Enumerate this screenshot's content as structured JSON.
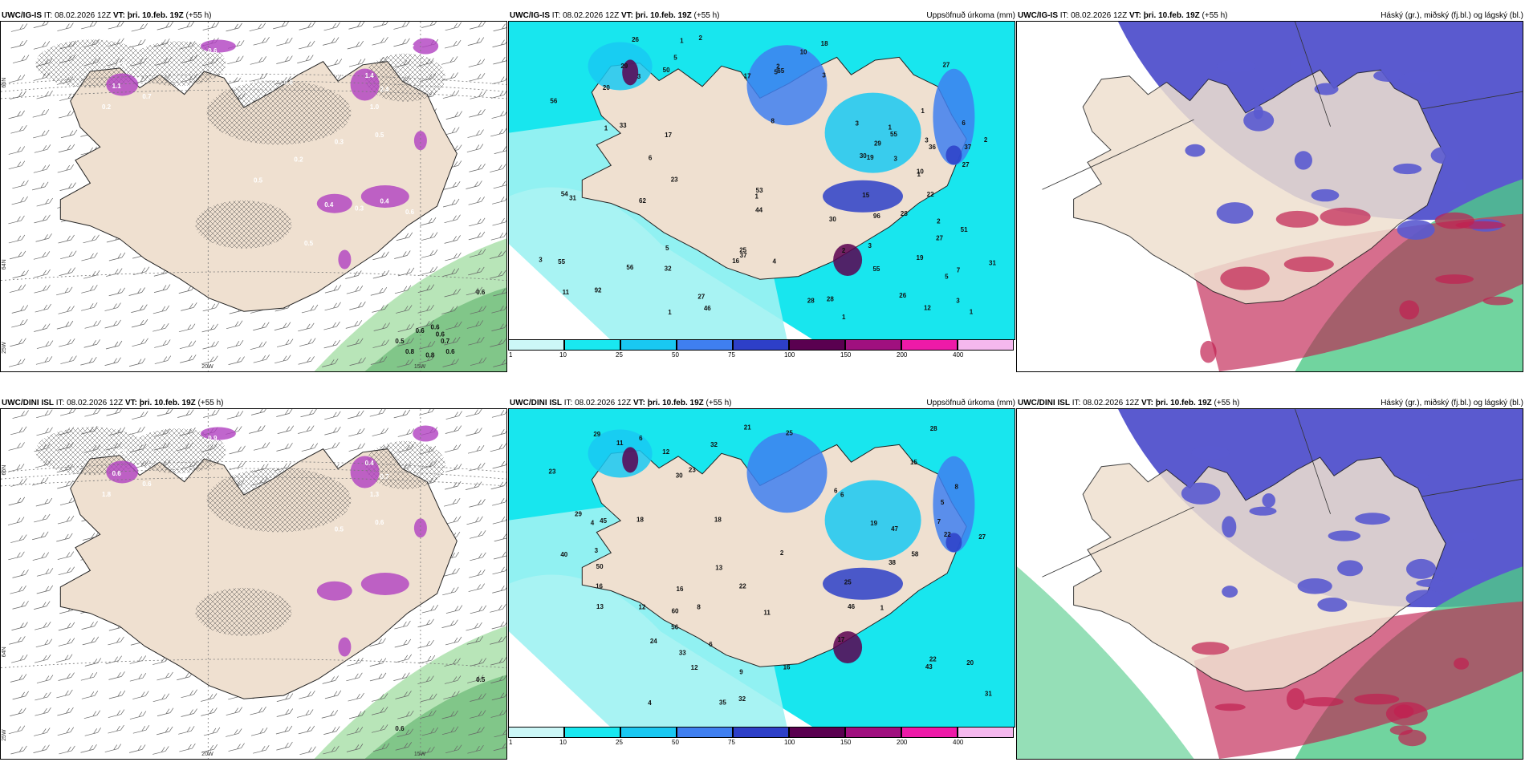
{
  "panels": {
    "tl": {
      "header_model": "UWC/IG-IS",
      "header_it": " IT: 08.02.2026 12Z ",
      "header_vt_label": "VT:",
      "header_vt": " þri. 10.feb. 19Z",
      "header_lead": " (+55 h)",
      "right": ""
    },
    "tm": {
      "header_model": "UWC/IG-IS",
      "header_it": " IT: 08.02.2026 12Z ",
      "header_vt_label": "VT:",
      "header_vt": " þri. 10.feb. 19Z",
      "header_lead": " (+55 h)",
      "right": "Uppsöfnuð úrkoma (mm)"
    },
    "tr": {
      "header_model": "UWC/IG-IS",
      "header_it": " IT: 08.02.2026 12Z ",
      "header_vt_label": "VT:",
      "header_vt": " þri. 10.feb. 19Z",
      "header_lead": " (+55 h)",
      "right": "Háský (gr.), miðský (fj.bl.) og lágský (bl.)"
    },
    "bl": {
      "header_model": "UWC/DINI ISL",
      "header_it": " IT: 08.02.2026 12Z ",
      "header_vt_label": "VT:",
      "header_vt": " þri. 10.feb. 19Z",
      "header_lead": " (+55 h)",
      "right": ""
    },
    "bm": {
      "header_model": "UWC/DINI ISL",
      "header_it": " IT: 08.02.2026 12Z ",
      "header_vt_label": "VT:",
      "header_vt": " þri. 10.feb. 19Z",
      "header_lead": " (+55 h)",
      "right": "Uppsöfnuð úrkoma (mm)"
    },
    "br": {
      "header_model": "UWC/DINI ISL",
      "header_it": " IT: 08.02.2026 12Z ",
      "header_vt_label": "VT:",
      "header_vt": " þri. 10.feb. 19Z",
      "header_lead": " (+55 h)",
      "right": "Háský (gr.), miðský (fj.bl.) og lágský (bl.)"
    }
  },
  "axis_labels": {
    "lat66": "66N",
    "lat64": "64N",
    "lon20": "20W",
    "lon15": "15W",
    "lon25": "25W"
  },
  "colorbar": {
    "ticks": [
      "1",
      "10",
      "25",
      "50",
      "75",
      "100",
      "150",
      "200",
      "400"
    ],
    "colors": [
      "#ccf7f7",
      "#19e8f0",
      "#19c8f2",
      "#3f7ff0",
      "#2d3fc8",
      "#5a0050",
      "#a0107f",
      "#ee1aa8",
      "#f5b8ee"
    ]
  },
  "colors": {
    "land": "#efe0d0",
    "precip_sea": "#9ff2f2",
    "precip_sea_deep": "#18e6ee",
    "cloud_high": "#5a5acf",
    "cloud_mid": "#c02050",
    "cloud_low": "#4ec987",
    "snow": "#b040c0",
    "rain_green": "#7ecf7e"
  },
  "precip_tm": [
    "19",
    "6",
    "7",
    "8",
    "11",
    "5",
    "3",
    "32",
    "27",
    "33",
    "37",
    "56",
    "10",
    "46",
    "55",
    "20",
    "5",
    "50",
    "37",
    "36",
    "54",
    "31",
    "28",
    "30",
    "27",
    "16",
    "10",
    "3",
    "3",
    "31",
    "62",
    "55",
    "1",
    "1",
    "2",
    "26",
    "19",
    "17",
    "12",
    "23",
    "28",
    "3",
    "5",
    "6",
    "51",
    "96",
    "92",
    "18",
    "17",
    "55",
    "56",
    "44",
    "65",
    "2",
    "2",
    "15",
    "1",
    "29",
    "1",
    "2",
    "2",
    "3",
    "1",
    "4",
    "3",
    "3",
    "3",
    "53",
    "1",
    "1",
    "1",
    "1",
    "5",
    "30",
    "25",
    "29",
    "26",
    "27",
    "22",
    "27",
    "28"
  ],
  "precip_bm": [
    "8",
    "12",
    "12",
    "13",
    "11",
    "5",
    "33",
    "6",
    "6",
    "9",
    "24",
    "43",
    "29",
    "32",
    "58",
    "46",
    "56",
    "22",
    "21",
    "45",
    "35",
    "38",
    "30",
    "25",
    "27",
    "16",
    "40",
    "32",
    "20",
    "28",
    "12",
    "29",
    "22",
    "11",
    "7",
    "3",
    "6",
    "6",
    "4",
    "15",
    "47",
    "50",
    "60",
    "25",
    "4",
    "31",
    "16",
    "16",
    "18",
    "18",
    "19",
    "23",
    "13",
    "23",
    "17",
    "22",
    "1",
    "2",
    "8"
  ],
  "snow_tl": [
    "0.5",
    "1.1",
    "0.7",
    "0.2",
    "0.6",
    "1.4",
    "2.4",
    "1.0",
    "0.5",
    "0.3",
    "0.2",
    "0.5",
    "0.4",
    "0.3",
    "0.4",
    "0.6",
    "0.8",
    "0.7",
    "0.6",
    "0.5",
    "0.6"
  ],
  "rain_tl": [
    "0.6",
    "0.5",
    "0.6",
    "0.6",
    "0.7",
    "0.8",
    "0.6",
    "0.8",
    "0.6"
  ],
  "snow_bl": [
    "0.5",
    "0.6",
    "0.6",
    "1.8",
    "0.9",
    "0.4",
    "0.7",
    "1.3",
    "0.6",
    "0.5"
  ],
  "rain_bl": [
    "0.5",
    "0.6"
  ]
}
